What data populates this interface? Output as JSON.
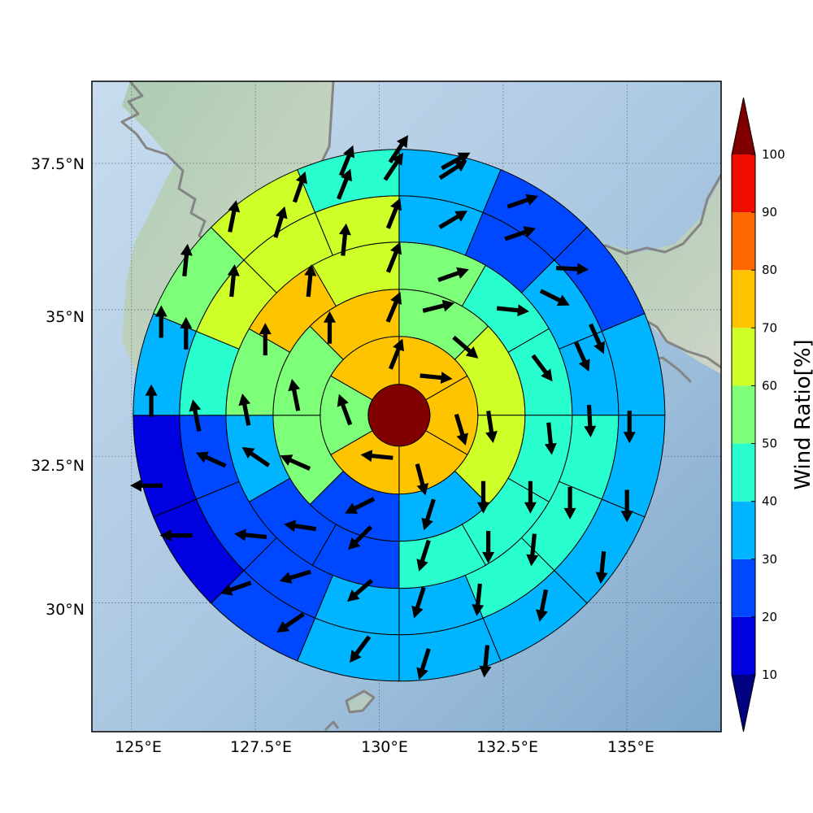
{
  "chart_data": {
    "type": "polar-sector-map",
    "x_ticks": [
      "125°E",
      "127.5°E",
      "130°E",
      "132.5°E",
      "135°E"
    ],
    "y_ticks": [
      "37.5°N",
      "35°N",
      "32.5°N",
      "30°N"
    ],
    "x_tick_values": [
      125,
      127.5,
      130,
      132.5,
      135
    ],
    "y_tick_values": [
      37.5,
      35,
      32.5,
      30
    ],
    "xlim": [
      124.2,
      136.9
    ],
    "ylim": [
      27.8,
      38.9
    ],
    "center": {
      "lon": 130.4,
      "lat": 33.2
    },
    "colorbar": {
      "label": "Wind Ratio[%]",
      "ticks": [
        "10",
        "20",
        "30",
        "40",
        "50",
        "60",
        "70",
        "80",
        "90",
        "100"
      ],
      "tick_values": [
        10,
        20,
        30,
        40,
        50,
        60,
        70,
        80,
        90,
        100
      ],
      "levels": [
        0,
        10,
        20,
        30,
        40,
        50,
        60,
        70,
        80,
        90,
        100,
        110
      ],
      "colors": [
        "#000080",
        "#0000e0",
        "#0048ff",
        "#00b4ff",
        "#29ffce",
        "#7dff7a",
        "#ceff29",
        "#ffc400",
        "#ff6800",
        "#f00d00",
        "#800000"
      ]
    },
    "center_value": 100,
    "rings": [
      {
        "sectors": 6,
        "values": [
          75,
          78,
          72,
          76,
          55,
          78
        ]
      },
      {
        "sectors": 8,
        "values": [
          52,
          62,
          65,
          38,
          28,
          50,
          55,
          72
        ]
      },
      {
        "sectors": 12,
        "values": [
          55,
          44,
          42,
          44,
          42,
          48,
          28,
          24,
          32,
          55,
          72,
          68
        ]
      },
      {
        "sectors": 16,
        "values": [
          35,
          26,
          30,
          38,
          45,
          45,
          42,
          36,
          32,
          22,
          21,
          24,
          44,
          62,
          67,
          66
        ]
      },
      {
        "sectors": 16,
        "values": [
          38,
          25,
          21,
          30,
          35,
          37,
          38,
          34,
          31,
          20,
          18,
          12,
          35,
          52,
          64,
          45
        ]
      }
    ],
    "arrows": [
      {
        "lon": 130.35,
        "lat": 34.25,
        "u": 0.4,
        "v": 1.0
      },
      {
        "lon": 131.15,
        "lat": 33.85,
        "u": 1.0,
        "v": -0.1
      },
      {
        "lon": 131.65,
        "lat": 32.95,
        "u": 0.3,
        "v": -1.0
      },
      {
        "lon": 130.85,
        "lat": 32.1,
        "u": 0.25,
        "v": -0.95
      },
      {
        "lon": 129.95,
        "lat": 32.5,
        "u": -1.0,
        "v": 0.1
      },
      {
        "lon": 129.3,
        "lat": 33.3,
        "u": -0.35,
        "v": 0.95
      },
      {
        "lon": 130.3,
        "lat": 35.05,
        "u": 0.4,
        "v": 0.95
      },
      {
        "lon": 131.2,
        "lat": 35.05,
        "u": 1.0,
        "v": 0.25
      },
      {
        "lon": 131.75,
        "lat": 34.35,
        "u": 0.7,
        "v": -0.6
      },
      {
        "lon": 132.25,
        "lat": 33.0,
        "u": 0.15,
        "v": -1.0
      },
      {
        "lon": 132.1,
        "lat": 31.8,
        "u": 0.0,
        "v": -1.0
      },
      {
        "lon": 131.0,
        "lat": 31.5,
        "u": -0.3,
        "v": -0.95
      },
      {
        "lon": 129.6,
        "lat": 31.65,
        "u": -0.9,
        "v": -0.45
      },
      {
        "lon": 128.3,
        "lat": 32.4,
        "u": -0.9,
        "v": 0.4
      },
      {
        "lon": 128.3,
        "lat": 33.55,
        "u": -0.2,
        "v": 1.0
      },
      {
        "lon": 129.0,
        "lat": 34.7,
        "u": 0.0,
        "v": 1.0
      },
      {
        "lon": 130.3,
        "lat": 35.9,
        "u": 0.4,
        "v": 1.0
      },
      {
        "lon": 131.5,
        "lat": 35.6,
        "u": 1.0,
        "v": 0.35
      },
      {
        "lon": 132.7,
        "lat": 35.0,
        "u": 1.0,
        "v": -0.1
      },
      {
        "lon": 133.3,
        "lat": 34.0,
        "u": 0.6,
        "v": -0.8
      },
      {
        "lon": 133.45,
        "lat": 32.8,
        "u": 0.1,
        "v": -1.0
      },
      {
        "lon": 133.05,
        "lat": 31.8,
        "u": 0.0,
        "v": -1.0
      },
      {
        "lon": 132.2,
        "lat": 30.95,
        "u": 0.0,
        "v": -1.0
      },
      {
        "lon": 130.9,
        "lat": 30.8,
        "u": -0.3,
        "v": -0.95
      },
      {
        "lon": 129.6,
        "lat": 31.1,
        "u": -0.7,
        "v": -0.7
      },
      {
        "lon": 128.4,
        "lat": 31.3,
        "u": -1.0,
        "v": 0.15
      },
      {
        "lon": 127.5,
        "lat": 32.5,
        "u": -0.8,
        "v": 0.55
      },
      {
        "lon": 127.3,
        "lat": 33.3,
        "u": -0.2,
        "v": 1.0
      },
      {
        "lon": 127.7,
        "lat": 34.5,
        "u": 0.0,
        "v": 1.0
      },
      {
        "lon": 128.6,
        "lat": 35.5,
        "u": 0.1,
        "v": 1.0
      },
      {
        "lon": 129.3,
        "lat": 36.2,
        "u": 0.1,
        "v": 1.0
      },
      {
        "lon": 130.3,
        "lat": 36.65,
        "u": 0.4,
        "v": 1.0
      },
      {
        "lon": 131.5,
        "lat": 36.55,
        "u": 1.0,
        "v": 0.6
      },
      {
        "lon": 132.85,
        "lat": 36.3,
        "u": 1.0,
        "v": 0.35
      },
      {
        "lon": 133.55,
        "lat": 35.2,
        "u": 0.9,
        "v": -0.45
      },
      {
        "lon": 134.1,
        "lat": 34.2,
        "u": 0.4,
        "v": -0.9
      },
      {
        "lon": 134.25,
        "lat": 33.1,
        "u": 0.05,
        "v": -1.0
      },
      {
        "lon": 133.85,
        "lat": 31.7,
        "u": 0.0,
        "v": -1.0
      },
      {
        "lon": 133.1,
        "lat": 30.9,
        "u": -0.1,
        "v": -1.0
      },
      {
        "lon": 132.0,
        "lat": 30.05,
        "u": -0.1,
        "v": -1.0
      },
      {
        "lon": 130.8,
        "lat": 30.0,
        "u": -0.3,
        "v": -0.95
      },
      {
        "lon": 129.6,
        "lat": 30.2,
        "u": -0.75,
        "v": -0.65
      },
      {
        "lon": 128.3,
        "lat": 30.45,
        "u": -1.0,
        "v": -0.3
      },
      {
        "lon": 127.4,
        "lat": 31.15,
        "u": -1.0,
        "v": 0.1
      },
      {
        "lon": 126.6,
        "lat": 32.45,
        "u": -1.0,
        "v": 0.45
      },
      {
        "lon": 126.3,
        "lat": 33.2,
        "u": -0.2,
        "v": 1.0
      },
      {
        "lon": 126.1,
        "lat": 34.6,
        "u": 0.0,
        "v": 1.0
      },
      {
        "lon": 127.05,
        "lat": 35.5,
        "u": 0.1,
        "v": 1.0
      },
      {
        "lon": 128.0,
        "lat": 36.5,
        "u": 0.3,
        "v": 1.0
      },
      {
        "lon": 129.3,
        "lat": 37.15,
        "u": 0.4,
        "v": 1.0
      },
      {
        "lon": 130.3,
        "lat": 37.45,
        "u": 0.6,
        "v": 0.9
      },
      {
        "lon": 131.5,
        "lat": 37.4,
        "u": 1.0,
        "v": 0.65
      },
      {
        "lon": 132.9,
        "lat": 36.85,
        "u": 1.0,
        "v": 0.35
      },
      {
        "lon": 133.9,
        "lat": 35.7,
        "u": 1.0,
        "v": -0.05
      },
      {
        "lon": 134.4,
        "lat": 34.5,
        "u": 0.4,
        "v": -0.9
      },
      {
        "lon": 135.05,
        "lat": 33.0,
        "u": 0.0,
        "v": -1.0
      },
      {
        "lon": 135.0,
        "lat": 31.65,
        "u": 0.0,
        "v": -1.0
      },
      {
        "lon": 134.5,
        "lat": 30.6,
        "u": -0.1,
        "v": -1.0
      },
      {
        "lon": 133.3,
        "lat": 29.95,
        "u": -0.2,
        "v": -1.0
      },
      {
        "lon": 132.15,
        "lat": 29.0,
        "u": -0.1,
        "v": -1.0
      },
      {
        "lon": 130.9,
        "lat": 28.95,
        "u": -0.3,
        "v": -0.95
      },
      {
        "lon": 129.6,
        "lat": 29.2,
        "u": -0.6,
        "v": -0.8
      },
      {
        "lon": 128.2,
        "lat": 29.65,
        "u": -0.8,
        "v": -0.55
      },
      {
        "lon": 127.1,
        "lat": 30.25,
        "u": -1.0,
        "v": -0.35
      },
      {
        "lon": 125.9,
        "lat": 31.15,
        "u": -1.0,
        "v": 0.0
      },
      {
        "lon": 125.3,
        "lat": 32.0,
        "u": -1.0,
        "v": 0.0
      },
      {
        "lon": 125.4,
        "lat": 33.45,
        "u": 0.0,
        "v": 1.0
      },
      {
        "lon": 125.6,
        "lat": 34.8,
        "u": 0.0,
        "v": 1.0
      },
      {
        "lon": 126.1,
        "lat": 35.85,
        "u": 0.1,
        "v": 1.0
      },
      {
        "lon": 127.05,
        "lat": 36.6,
        "u": 0.2,
        "v": 1.0
      },
      {
        "lon": 128.4,
        "lat": 37.1,
        "u": 0.35,
        "v": 1.0
      },
      {
        "lon": 129.35,
        "lat": 37.55,
        "u": 0.4,
        "v": 1.0
      },
      {
        "lon": 130.4,
        "lat": 37.75,
        "u": 0.6,
        "v": 0.9
      },
      {
        "lon": 131.55,
        "lat": 37.55,
        "u": 1.0,
        "v": 0.55
      }
    ],
    "land_features": [
      "korean-peninsula",
      "kyushu",
      "shikoku",
      "honshu",
      "japan-coastlines"
    ]
  }
}
